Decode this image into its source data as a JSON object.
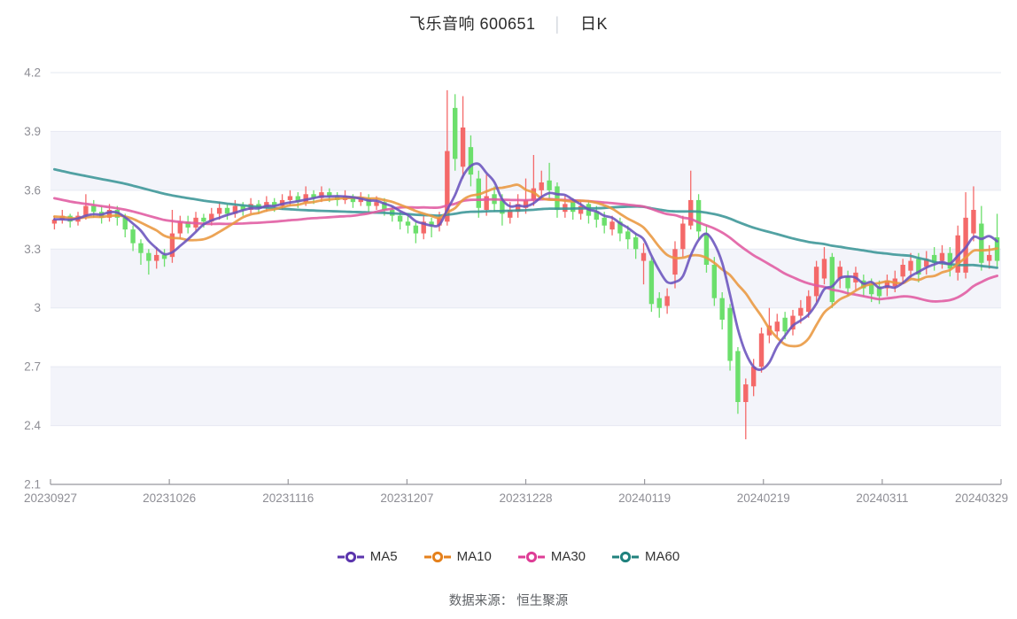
{
  "title": {
    "stock": "飞乐音响 600651",
    "separator": "│",
    "period": "日K"
  },
  "footer": {
    "source": "数据来源： 恒生聚源"
  },
  "legend": {
    "items": [
      {
        "label": "MA5",
        "color": "#5b35ad",
        "line_color": "#6a53bd"
      },
      {
        "label": "MA10",
        "color": "#e5811c",
        "line_color": "#e9973f"
      },
      {
        "label": "MA30",
        "color": "#de3d96",
        "line_color": "#e express0"
      },
      {
        "label": "MA60",
        "color": "#20827e",
        "line_color": "#3a9596"
      }
    ]
  },
  "chart_data": {
    "type": "candlestick",
    "title": "飞乐音响 600651 日K",
    "ylabel": "",
    "xlabel": "",
    "ylim": [
      2.1,
      4.2
    ],
    "y_ticks": [
      2.1,
      2.4,
      2.7,
      3.0,
      3.3,
      3.6,
      3.9,
      4.2
    ],
    "y_tick_labels": [
      "2.1",
      "2.4",
      "2.7",
      "3",
      "3.3",
      "3.6",
      "3.9",
      "4.2"
    ],
    "x_tick_labels": [
      "20230927",
      "20231026",
      "20231116",
      "20231207",
      "20231228",
      "20240119",
      "20240219",
      "20240311",
      "20240329"
    ],
    "x_tick_indices": [
      0,
      15,
      30,
      45,
      60,
      75,
      90,
      105,
      120
    ],
    "grid": true,
    "shaded_bands": [
      [
        3.6,
        3.9
      ],
      [
        3.0,
        3.3
      ],
      [
        2.4,
        2.7
      ]
    ],
    "colors": {
      "up_candle": "#f46969",
      "down_candle": "#6cdf6c",
      "band": "#f3f4fa",
      "gridline": "#e6e9f2",
      "axis": "#98989e",
      "tick_text": "#8e8e95"
    },
    "ma_series": [
      {
        "name": "MA5",
        "window": 5,
        "color": "#6a53bd"
      },
      {
        "name": "MA10",
        "window": 10,
        "color": "#e9973f"
      },
      {
        "name": "MA30",
        "window": 30,
        "color": "#e05aa0"
      },
      {
        "name": "MA60",
        "window": 60,
        "color": "#3a9596"
      }
    ],
    "candles_format": "open, close, low, high",
    "candles": [
      [
        3.43,
        3.45,
        3.4,
        3.47
      ],
      [
        3.45,
        3.47,
        3.43,
        3.5
      ],
      [
        3.47,
        3.44,
        3.41,
        3.48
      ],
      [
        3.44,
        3.47,
        3.42,
        3.49
      ],
      [
        3.47,
        3.52,
        3.45,
        3.58
      ],
      [
        3.52,
        3.49,
        3.46,
        3.55
      ],
      [
        3.49,
        3.46,
        3.43,
        3.52
      ],
      [
        3.46,
        3.5,
        3.44,
        3.53
      ],
      [
        3.5,
        3.46,
        3.42,
        3.52
      ],
      [
        3.46,
        3.4,
        3.36,
        3.48
      ],
      [
        3.4,
        3.33,
        3.29,
        3.42
      ],
      [
        3.33,
        3.28,
        3.22,
        3.35
      ],
      [
        3.28,
        3.24,
        3.17,
        3.3
      ],
      [
        3.24,
        3.27,
        3.2,
        3.31
      ],
      [
        3.27,
        3.25,
        3.21,
        3.3
      ],
      [
        3.26,
        3.38,
        3.23,
        3.5
      ],
      [
        3.38,
        3.44,
        3.35,
        3.47
      ],
      [
        3.44,
        3.41,
        3.38,
        3.47
      ],
      [
        3.41,
        3.46,
        3.39,
        3.49
      ],
      [
        3.46,
        3.44,
        3.41,
        3.48
      ],
      [
        3.44,
        3.48,
        3.42,
        3.51
      ],
      [
        3.48,
        3.51,
        3.45,
        3.54
      ],
      [
        3.51,
        3.48,
        3.45,
        3.53
      ],
      [
        3.48,
        3.52,
        3.46,
        3.55
      ],
      [
        3.52,
        3.5,
        3.47,
        3.54
      ],
      [
        3.5,
        3.53,
        3.48,
        3.56
      ],
      [
        3.53,
        3.51,
        3.48,
        3.55
      ],
      [
        3.51,
        3.54,
        3.49,
        3.57
      ],
      [
        3.54,
        3.52,
        3.49,
        3.56
      ],
      [
        3.52,
        3.55,
        3.5,
        3.58
      ],
      [
        3.55,
        3.57,
        3.52,
        3.6
      ],
      [
        3.57,
        3.54,
        3.51,
        3.59
      ],
      [
        3.54,
        3.58,
        3.52,
        3.62
      ],
      [
        3.58,
        3.56,
        3.53,
        3.6
      ],
      [
        3.56,
        3.59,
        3.54,
        3.62
      ],
      [
        3.59,
        3.57,
        3.54,
        3.61
      ],
      [
        3.57,
        3.55,
        3.52,
        3.59
      ],
      [
        3.55,
        3.57,
        3.53,
        3.6
      ],
      [
        3.57,
        3.54,
        3.51,
        3.58
      ],
      [
        3.54,
        3.56,
        3.52,
        3.59
      ],
      [
        3.56,
        3.52,
        3.49,
        3.58
      ],
      [
        3.52,
        3.54,
        3.5,
        3.57
      ],
      [
        3.54,
        3.5,
        3.47,
        3.56
      ],
      [
        3.5,
        3.47,
        3.44,
        3.52
      ],
      [
        3.47,
        3.44,
        3.4,
        3.49
      ],
      [
        3.44,
        3.42,
        3.38,
        3.47
      ],
      [
        3.42,
        3.38,
        3.33,
        3.44
      ],
      [
        3.38,
        3.44,
        3.35,
        3.47
      ],
      [
        3.44,
        3.42,
        3.36,
        3.46
      ],
      [
        3.42,
        3.46,
        3.39,
        3.49
      ],
      [
        3.44,
        3.8,
        3.42,
        4.11
      ],
      [
        4.02,
        3.76,
        3.7,
        4.09
      ],
      [
        3.72,
        3.92,
        3.66,
        4.08
      ],
      [
        3.82,
        3.68,
        3.62,
        3.88
      ],
      [
        3.66,
        3.51,
        3.46,
        3.7
      ],
      [
        3.5,
        3.57,
        3.47,
        3.68
      ],
      [
        3.58,
        3.53,
        3.49,
        3.62
      ],
      [
        3.55,
        3.48,
        3.42,
        3.58
      ],
      [
        3.46,
        3.5,
        3.43,
        3.54
      ],
      [
        3.49,
        3.53,
        3.46,
        3.58
      ],
      [
        3.51,
        3.55,
        3.48,
        3.66
      ],
      [
        3.55,
        3.61,
        3.52,
        3.78
      ],
      [
        3.6,
        3.64,
        3.56,
        3.7
      ],
      [
        3.65,
        3.6,
        3.55,
        3.74
      ],
      [
        3.62,
        3.5,
        3.46,
        3.64
      ],
      [
        3.49,
        3.53,
        3.46,
        3.57
      ],
      [
        3.54,
        3.49,
        3.45,
        3.56
      ],
      [
        3.48,
        3.52,
        3.45,
        3.55
      ],
      [
        3.53,
        3.47,
        3.43,
        3.55
      ],
      [
        3.49,
        3.45,
        3.41,
        3.52
      ],
      [
        3.46,
        3.42,
        3.38,
        3.49
      ],
      [
        3.4,
        3.44,
        3.37,
        3.47
      ],
      [
        3.44,
        3.38,
        3.34,
        3.46
      ],
      [
        3.39,
        3.35,
        3.3,
        3.42
      ],
      [
        3.36,
        3.3,
        3.25,
        3.38
      ],
      [
        3.24,
        3.28,
        3.12,
        3.33
      ],
      [
        3.24,
        3.02,
        2.98,
        3.26
      ],
      [
        3.05,
        3.0,
        2.95,
        3.08
      ],
      [
        3.01,
        3.06,
        2.97,
        3.1
      ],
      [
        3.17,
        3.3,
        3.1,
        3.34
      ],
      [
        3.3,
        3.43,
        3.26,
        3.47
      ],
      [
        3.42,
        3.55,
        3.4,
        3.7
      ],
      [
        3.55,
        3.39,
        3.35,
        3.58
      ],
      [
        3.38,
        3.22,
        3.18,
        3.42
      ],
      [
        3.22,
        3.05,
        3.01,
        3.26
      ],
      [
        3.05,
        2.94,
        2.89,
        3.08
      ],
      [
        3.0,
        2.73,
        2.68,
        3.02
      ],
      [
        2.78,
        2.52,
        2.46,
        2.8
      ],
      [
        2.52,
        2.61,
        2.33,
        2.64
      ],
      [
        2.6,
        2.7,
        2.55,
        2.74
      ],
      [
        2.7,
        2.87,
        2.67,
        2.9
      ],
      [
        2.86,
        2.91,
        2.82,
        3.0
      ],
      [
        2.88,
        2.93,
        2.85,
        2.97
      ],
      [
        2.95,
        2.88,
        2.84,
        2.98
      ],
      [
        2.89,
        2.96,
        2.86,
        2.99
      ],
      [
        2.96,
        3.0,
        2.92,
        3.04
      ],
      [
        2.98,
        3.06,
        2.95,
        3.09
      ],
      [
        3.06,
        3.21,
        3.03,
        3.24
      ],
      [
        3.15,
        3.25,
        3.12,
        3.31
      ],
      [
        3.26,
        3.03,
        3.0,
        3.28
      ],
      [
        3.15,
        3.21,
        3.1,
        3.24
      ],
      [
        3.16,
        3.1,
        3.06,
        3.19
      ],
      [
        3.13,
        3.18,
        3.09,
        3.21
      ],
      [
        3.14,
        3.1,
        3.06,
        3.17
      ],
      [
        3.12,
        3.07,
        3.03,
        3.15
      ],
      [
        3.11,
        3.06,
        3.02,
        3.14
      ],
      [
        3.1,
        3.14,
        3.06,
        3.17
      ],
      [
        3.11,
        3.15,
        3.08,
        3.19
      ],
      [
        3.16,
        3.22,
        3.12,
        3.25
      ],
      [
        3.19,
        3.24,
        3.15,
        3.28
      ],
      [
        3.25,
        3.17,
        3.13,
        3.28
      ],
      [
        3.21,
        3.25,
        3.17,
        3.29
      ],
      [
        3.27,
        3.23,
        3.19,
        3.31
      ],
      [
        3.24,
        3.28,
        3.2,
        3.32
      ],
      [
        3.28,
        3.2,
        3.16,
        3.31
      ],
      [
        3.18,
        3.37,
        3.14,
        3.42
      ],
      [
        3.18,
        3.46,
        3.15,
        3.59
      ],
      [
        3.38,
        3.5,
        3.34,
        3.62
      ],
      [
        3.43,
        3.23,
        3.19,
        3.52
      ],
      [
        3.24,
        3.27,
        3.2,
        3.32
      ],
      [
        3.36,
        3.24,
        3.21,
        3.48
      ]
    ],
    "pre_window_closes": [
      4.0,
      3.99,
      3.97,
      3.98,
      3.96,
      3.94,
      3.95,
      3.93,
      3.91,
      3.92,
      3.9,
      3.88,
      3.89,
      3.87,
      3.85,
      3.86,
      3.84,
      3.82,
      3.83,
      3.81,
      3.79,
      3.8,
      3.78,
      3.76,
      3.77,
      3.75,
      3.73,
      3.74,
      3.72,
      3.7,
      3.71,
      3.69,
      3.67,
      3.68,
      3.66,
      3.64,
      3.65,
      3.63,
      3.61,
      3.62,
      3.6,
      3.58,
      3.59,
      3.57,
      3.55,
      3.56,
      3.54,
      3.52,
      3.53,
      3.51,
      3.49,
      3.5,
      3.48,
      3.47,
      3.46,
      3.47,
      3.45,
      3.44,
      3.45
    ]
  }
}
